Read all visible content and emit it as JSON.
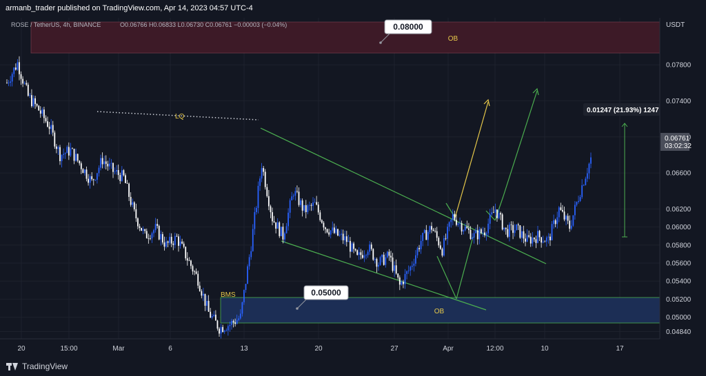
{
  "header": {
    "published": "armanb_trader published on TradingView.com, Apr 14, 2023 04:57 UTC-4"
  },
  "legend": {
    "symbol": "ROSE / TetherUS, 4h, BINANCE",
    "ohlc": "O0.06766 H0.06833 L0.06730 C0.06761 −0.00003 (−0.04%)"
  },
  "footer": {
    "brand": "TradingView"
  },
  "colors": {
    "background": "#131722",
    "up": "#2962ff",
    "down": "#ffffff",
    "grid": "#1e222d",
    "green_lines": "#4caf50",
    "ob_red": "#3d1a27",
    "ob_blue": "#1c2e55",
    "yellow": "#e6c84a"
  },
  "chart_data": {
    "type": "candlestick",
    "title": "ROSE / TetherUS, 4h, BINANCE",
    "currency": "USDT",
    "xlabel": "",
    "ylabel": "",
    "ylim": [
      0.0476,
      0.0832
    ],
    "yticks": [
      "0.07800",
      "0.07400",
      "0.07000",
      "0.06600",
      "0.06200",
      "0.06000",
      "0.05800",
      "0.05600",
      "0.05400",
      "0.05200",
      "0.05000",
      "0.04840"
    ],
    "xticks": [
      "20",
      "15:00",
      "Mar",
      "6",
      "13",
      "20",
      "27",
      "Apr",
      "12:00",
      "10",
      "17"
    ],
    "grid": true,
    "price_path": [
      [
        "Feb 18",
        0.076
      ],
      [
        "Feb 19",
        0.0782
      ],
      [
        "Feb 20",
        0.0745
      ],
      [
        "Feb 21",
        0.073
      ],
      [
        "Feb 22",
        0.0712
      ],
      [
        "Feb 23",
        0.068
      ],
      [
        "Feb 24",
        0.0685
      ],
      [
        "Feb 25",
        0.0668
      ],
      [
        "Feb 26",
        0.065
      ],
      [
        "Feb 27",
        0.0675
      ],
      [
        "Feb 28",
        0.0662
      ],
      [
        "Mar 1",
        0.0655
      ],
      [
        "Mar 2",
        0.0615
      ],
      [
        "Mar 3",
        0.059
      ],
      [
        "Mar 4",
        0.0598
      ],
      [
        "Mar 5",
        0.058
      ],
      [
        "Mar 6",
        0.0588
      ],
      [
        "Mar 7",
        0.0565
      ],
      [
        "Mar 8",
        0.0542
      ],
      [
        "Mar 9",
        0.0505
      ],
      [
        "Mar 10",
        0.0488
      ],
      [
        "Mar 11",
        0.0492
      ],
      [
        "Mar 12",
        0.05
      ],
      [
        "Mar 13",
        0.058
      ],
      [
        "Mar 14",
        0.067
      ],
      [
        "Mar 15",
        0.061
      ],
      [
        "Mar 16",
        0.059
      ],
      [
        "Mar 17",
        0.064
      ],
      [
        "Mar 18",
        0.0618
      ],
      [
        "Mar 19",
        0.0625
      ],
      [
        "Mar 20",
        0.06
      ],
      [
        "Mar 21",
        0.0592
      ],
      [
        "Mar 22",
        0.0585
      ],
      [
        "Mar 23",
        0.0565
      ],
      [
        "Mar 24",
        0.0578
      ],
      [
        "Mar 25",
        0.056
      ],
      [
        "Mar 26",
        0.0568
      ],
      [
        "Mar 27",
        0.0535
      ],
      [
        "Mar 28",
        0.0555
      ],
      [
        "Mar 29",
        0.0585
      ],
      [
        "Mar 30",
        0.06
      ],
      [
        "Mar 31",
        0.0575
      ],
      [
        "Apr 1",
        0.0612
      ],
      [
        "Apr 2",
        0.06
      ],
      [
        "Apr 3",
        0.059
      ],
      [
        "Apr 4",
        0.0596
      ],
      [
        "Apr 5",
        0.062
      ],
      [
        "Apr 6",
        0.0595
      ],
      [
        "Apr 7",
        0.0598
      ],
      [
        "Apr 8",
        0.0585
      ],
      [
        "Apr 9",
        0.059
      ],
      [
        "Apr 10",
        0.0585
      ],
      [
        "Apr 11",
        0.062
      ],
      [
        "Apr 12",
        0.06
      ],
      [
        "Apr 13",
        0.064
      ],
      [
        "Apr 14",
        0.0676
      ]
    ],
    "last_price": {
      "value": "0.06761",
      "countdown": "03:02:32"
    },
    "annotations": {
      "ob_top": {
        "label": "OB",
        "price_low": 0.0782,
        "price_high": 0.0832
      },
      "ob_bottom": {
        "label": "OB",
        "price_low": 0.0486,
        "price_high": 0.051
      },
      "callout_top": "0.08000",
      "callout_bottom": "0.05000",
      "lq": "LQ",
      "bms": "BMS",
      "measure": "0.01247 (21.93%) 1247"
    }
  }
}
